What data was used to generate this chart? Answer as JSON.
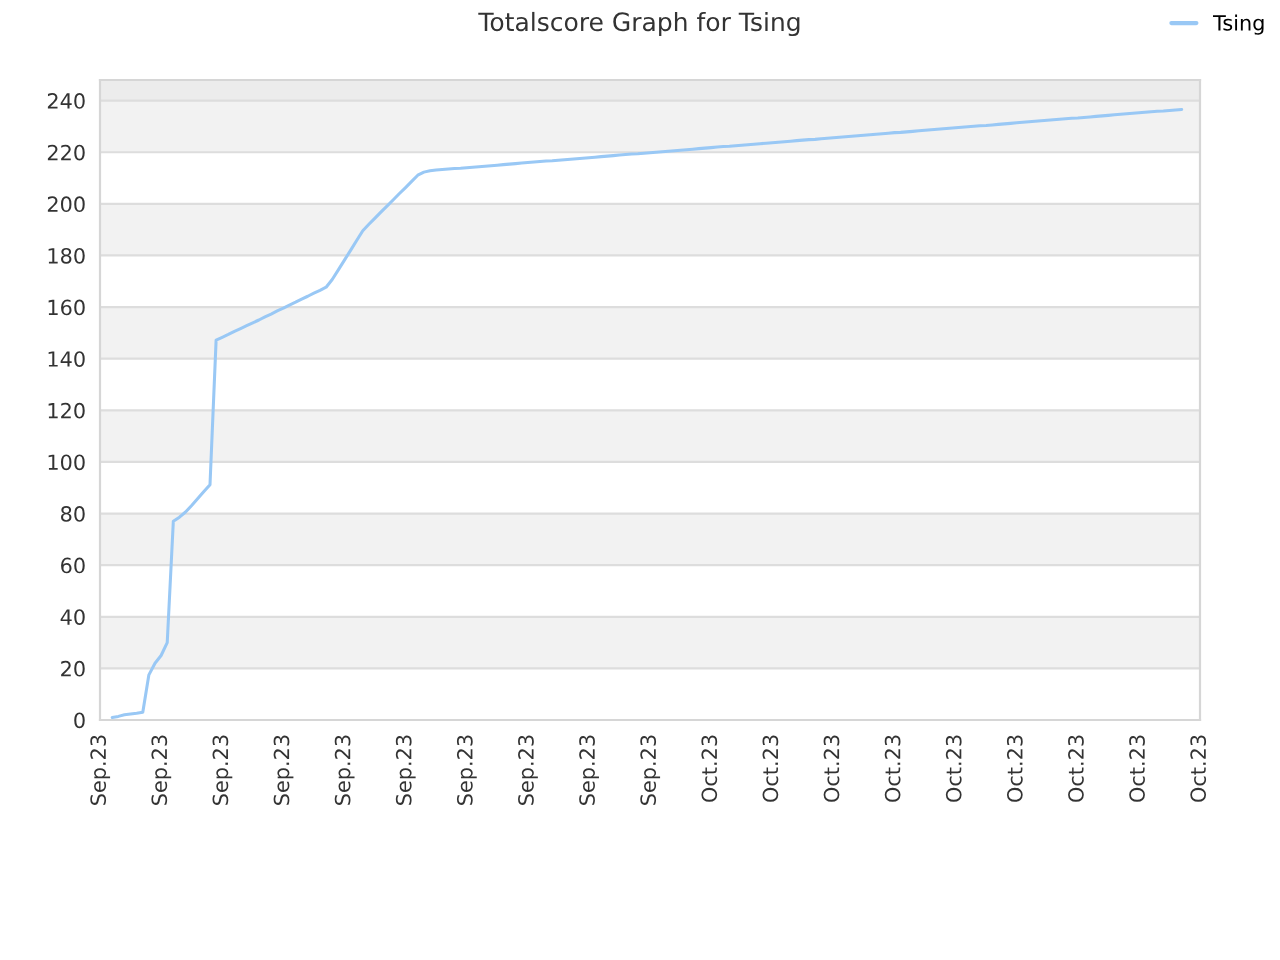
{
  "chart_data": {
    "type": "line",
    "title": "Totalscore Graph for Tsing",
    "categories": [
      "Sep.23",
      null,
      null,
      null,
      null,
      null,
      null,
      null,
      null,
      null,
      "Sep.23",
      null,
      null,
      null,
      null,
      null,
      null,
      null,
      null,
      null,
      "Sep.23",
      null,
      null,
      null,
      null,
      null,
      null,
      null,
      null,
      null,
      "Sep.23",
      null,
      null,
      null,
      null,
      null,
      null,
      null,
      null,
      null,
      "Sep.23",
      null,
      null,
      null,
      null,
      null,
      null,
      null,
      null,
      null,
      "Sep.23",
      null,
      null,
      null,
      null,
      null,
      null,
      null,
      null,
      null,
      "Sep.23",
      null,
      null,
      null,
      null,
      null,
      null,
      null,
      null,
      null,
      "Sep.23",
      null,
      null,
      null,
      null,
      null,
      null,
      null,
      null,
      null,
      "Sep.23",
      null,
      null,
      null,
      null,
      null,
      null,
      null,
      null,
      null,
      "Sep.23",
      null,
      null,
      null,
      null,
      null,
      null,
      null,
      null,
      null,
      "Oct.23",
      null,
      null,
      null,
      null,
      null,
      null,
      null,
      null,
      null,
      "Oct.23",
      null,
      null,
      null,
      null,
      null,
      null,
      null,
      null,
      null,
      "Oct.23",
      null,
      null,
      null,
      null,
      null,
      null,
      null,
      null,
      null,
      "Oct.23",
      null,
      null,
      null,
      null,
      null,
      null,
      null,
      null,
      null,
      "Oct.23",
      null,
      null,
      null,
      null,
      null,
      null,
      null,
      null,
      null,
      "Oct.23",
      null,
      null,
      null,
      null,
      null,
      null,
      null,
      null,
      null,
      "Oct.23",
      null,
      null,
      null,
      null,
      null,
      null,
      null,
      null,
      null,
      "Oct.23",
      null,
      null,
      null,
      null,
      null,
      null,
      null,
      null,
      null,
      "Oct.23"
    ],
    "series": [
      {
        "name": "Tsing",
        "color": "#99c8f5",
        "values": [
          null,
          null,
          1,
          1.4,
          2,
          2.3,
          2.6,
          3,
          17.5,
          22,
          25,
          30,
          77,
          78.6,
          80.6,
          83.1,
          85.8,
          88.5,
          91.2,
          147.2,
          148.3,
          149.4,
          150.6,
          151.7,
          152.8,
          153.9,
          155,
          156.2,
          157.3,
          158.5,
          159.6,
          160.8,
          161.9,
          163.1,
          164.2,
          165.4,
          166.5,
          167.7,
          170.7,
          174.4,
          178.2,
          182,
          185.8,
          189.6,
          192.1,
          194.5,
          196.9,
          199.2,
          201.6,
          204,
          206.3,
          208.7,
          211.1,
          212.3,
          212.8,
          213.1,
          213.3,
          213.5,
          213.7,
          213.8,
          214.0,
          214.2,
          214.4,
          214.6,
          214.8,
          215.0,
          215.2,
          215.4,
          215.6,
          215.8,
          216.0,
          216.2,
          216.4,
          216.6,
          216.7,
          216.9,
          217.1,
          217.3,
          217.5,
          217.7,
          217.9,
          218.1,
          218.3,
          218.5,
          218.7,
          218.9,
          219.1,
          219.3,
          219.4,
          219.6,
          219.8,
          220.0,
          220.2,
          220.4,
          220.6,
          220.8,
          221.0,
          221.2,
          221.4,
          221.6,
          221.8,
          222.0,
          222.2,
          222.3,
          222.5,
          222.7,
          222.9,
          223.1,
          223.3,
          223.5,
          223.7,
          223.9,
          224.1,
          224.3,
          224.5,
          224.7,
          224.9,
          225.0,
          225.2,
          225.4,
          225.6,
          225.8,
          226.0,
          226.2,
          226.4,
          226.6,
          226.8,
          227.0,
          227.2,
          227.4,
          227.6,
          227.7,
          227.9,
          228.1,
          228.3,
          228.5,
          228.7,
          228.9,
          229.1,
          229.3,
          229.5,
          229.7,
          229.9,
          230.1,
          230.3,
          230.4,
          230.6,
          230.8,
          231.0,
          231.2,
          231.4,
          231.6,
          231.8,
          232.0,
          232.2,
          232.4,
          232.6,
          232.8,
          233.0,
          233.2,
          233.3,
          233.5,
          233.7,
          233.9,
          234.1,
          234.3,
          234.5,
          234.7,
          234.9,
          235.1,
          235.3,
          235.5,
          235.7,
          235.9,
          236.0,
          236.2,
          236.4,
          236.6,
          null,
          null,
          null
        ]
      }
    ],
    "ylim": [
      0,
      248
    ],
    "yticks": [
      0,
      20,
      40,
      60,
      80,
      100,
      120,
      140,
      160,
      180,
      200,
      220,
      240
    ],
    "bands": [
      {
        "axis": "y",
        "from": 20,
        "to": 40,
        "color": "#f2f2f2"
      },
      {
        "axis": "y",
        "from": 60,
        "to": 80,
        "color": "#f2f2f2"
      },
      {
        "axis": "y",
        "from": 100,
        "to": 120,
        "color": "#f2f2f2"
      },
      {
        "axis": "y",
        "from": 140,
        "to": 160,
        "color": "#f2f2f2"
      },
      {
        "axis": "y",
        "from": 180,
        "to": 200,
        "color": "#f2f2f2"
      },
      {
        "axis": "y",
        "from": 220,
        "to": 240,
        "color": "#f2f2f2"
      },
      {
        "axis": "y",
        "from": 240,
        "to": 248,
        "color": "#ececec"
      }
    ],
    "grid": "y",
    "legend": "top right",
    "marker": "none",
    "line_style": "solid"
  }
}
